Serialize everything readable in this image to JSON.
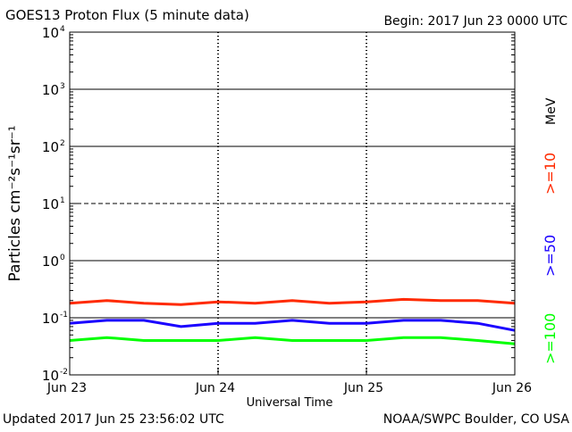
{
  "title": "GOES13 Proton Flux (5 minute data)",
  "begin": "Begin:  2017 Jun 23  0000 UTC",
  "updated": "Updated 2017 Jun 25 23:56:02 UTC",
  "source": "NOAA/SWPC Boulder, CO USA",
  "colors": {
    "gt10": "#ff2a00",
    "gt50": "#1a00ff",
    "gt100": "#00ff00",
    "axis": "#000000"
  },
  "chart_data": {
    "type": "line",
    "title": "GOES13 Proton Flux (5 minute data)",
    "xlabel": "Universal Time",
    "ylabel": "Particles cm⁻²s⁻¹sr⁻¹",
    "yscale": "log",
    "ylim": [
      0.01,
      10000
    ],
    "xlim": [
      "2017-06-23",
      "2017-06-26"
    ],
    "x_ticks": [
      "Jun 23",
      "Jun 24",
      "Jun 25",
      "Jun 26"
    ],
    "y_ticks": [
      {
        "base": "10",
        "exp": "4",
        "value": 10000
      },
      {
        "base": "10",
        "exp": "3",
        "value": 1000
      },
      {
        "base": "10",
        "exp": "2",
        "value": 100
      },
      {
        "base": "10",
        "exp": "1",
        "value": 10
      },
      {
        "base": "10",
        "exp": "0",
        "value": 1
      },
      {
        "base": "10",
        "exp": "-1",
        "value": 0.1
      },
      {
        "base": "10",
        "exp": "-2",
        "value": 0.01
      }
    ],
    "reference_lines": [
      1000,
      100,
      10,
      1,
      0.1
    ],
    "legend": {
      "unit": "MeV",
      "entries": [
        ">=10",
        ">=50",
        ">=100"
      ],
      "placement": "right"
    },
    "grid": true,
    "series": [
      {
        "name": ">=10",
        "color": "#ff2a00",
        "x": [
          "2017-06-23 00:00",
          "2017-06-23 06:00",
          "2017-06-23 12:00",
          "2017-06-23 18:00",
          "2017-06-24 00:00",
          "2017-06-24 06:00",
          "2017-06-24 12:00",
          "2017-06-24 18:00",
          "2017-06-25 00:00",
          "2017-06-25 06:00",
          "2017-06-25 12:00",
          "2017-06-25 18:00",
          "2017-06-26 00:00"
        ],
        "values": [
          0.18,
          0.2,
          0.18,
          0.17,
          0.19,
          0.18,
          0.2,
          0.18,
          0.19,
          0.21,
          0.2,
          0.2,
          0.18
        ]
      },
      {
        "name": ">=50",
        "color": "#1a00ff",
        "x": [
          "2017-06-23 00:00",
          "2017-06-23 06:00",
          "2017-06-23 12:00",
          "2017-06-23 18:00",
          "2017-06-24 00:00",
          "2017-06-24 06:00",
          "2017-06-24 12:00",
          "2017-06-24 18:00",
          "2017-06-25 00:00",
          "2017-06-25 06:00",
          "2017-06-25 12:00",
          "2017-06-25 18:00",
          "2017-06-26 00:00"
        ],
        "values": [
          0.08,
          0.09,
          0.09,
          0.07,
          0.08,
          0.08,
          0.09,
          0.08,
          0.08,
          0.09,
          0.09,
          0.08,
          0.06
        ]
      },
      {
        "name": ">=100",
        "color": "#00ff00",
        "x": [
          "2017-06-23 00:00",
          "2017-06-23 06:00",
          "2017-06-23 12:00",
          "2017-06-23 18:00",
          "2017-06-24 00:00",
          "2017-06-24 06:00",
          "2017-06-24 12:00",
          "2017-06-24 18:00",
          "2017-06-25 00:00",
          "2017-06-25 06:00",
          "2017-06-25 12:00",
          "2017-06-25 18:00",
          "2017-06-26 00:00"
        ],
        "values": [
          0.04,
          0.045,
          0.04,
          0.04,
          0.04,
          0.045,
          0.04,
          0.04,
          0.04,
          0.045,
          0.045,
          0.04,
          0.035
        ]
      }
    ]
  }
}
